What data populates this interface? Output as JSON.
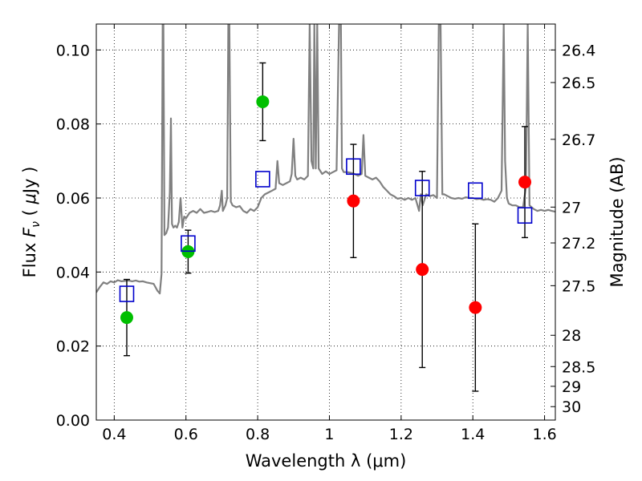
{
  "chart_data": {
    "type": "scatter",
    "xlabel": "Wavelength  λ (μm)",
    "ylabel": "Flux  F_ν  ( μJy )",
    "ylabel_parts": [
      "Flux  ",
      "F",
      "ν",
      "  ( ",
      "μ",
      "Jy )"
    ],
    "ylabel_right": "Magnitude (AB)",
    "xlim": [
      0.35,
      1.63
    ],
    "ylim": [
      0.0,
      0.107
    ],
    "grid": true,
    "x_ticks": [
      0.4,
      0.6,
      0.8,
      1.0,
      1.2,
      1.4,
      1.6
    ],
    "x_tick_labels": [
      "0.4",
      "0.6",
      "0.8",
      "1",
      "1.2",
      "1.4",
      "1.6"
    ],
    "y_ticks": [
      0.0,
      0.02,
      0.04,
      0.06,
      0.08,
      0.1
    ],
    "y_tick_labels": [
      "0.00",
      "0.02",
      "0.04",
      "0.06",
      "0.08",
      "0.10"
    ],
    "mag_ticks": [
      26.4,
      26.5,
      26.7,
      27,
      27.2,
      27.5,
      28,
      28.5,
      29,
      30
    ],
    "mag_tick_labels": [
      "26.4",
      "26.5",
      "26.7",
      "27",
      "27.2",
      "27.5",
      "28",
      "28.5",
      "29",
      "30"
    ],
    "series": [
      {
        "marker": "circle",
        "color": "#00bf00",
        "x": [
          0.435,
          0.606,
          0.814
        ],
        "y": [
          0.0277,
          0.0455,
          0.086
        ],
        "yerr": [
          0.0103,
          0.0058,
          0.0105
        ]
      },
      {
        "marker": "circle",
        "color": "#ff0000",
        "x": [
          1.067,
          1.259,
          1.407,
          1.545
        ],
        "y": [
          0.0592,
          0.0407,
          0.0304,
          0.0643
        ],
        "yerr": [
          0.0153,
          0.0265,
          0.0226,
          0.015
        ]
      },
      {
        "marker": "square",
        "color": "#0000cc",
        "x": [
          0.435,
          0.606,
          0.814,
          1.067,
          1.259,
          1.407,
          1.545
        ],
        "y": [
          0.0341,
          0.0477,
          0.0651,
          0.0685,
          0.0627,
          0.062,
          0.0553
        ]
      }
    ],
    "spectrum": {
      "color": "#808080",
      "points": [
        [
          0.35,
          0.0345
        ],
        [
          0.36,
          0.036
        ],
        [
          0.37,
          0.0372
        ],
        [
          0.38,
          0.0368
        ],
        [
          0.39,
          0.0375
        ],
        [
          0.4,
          0.0372
        ],
        [
          0.41,
          0.0378
        ],
        [
          0.42,
          0.0375
        ],
        [
          0.43,
          0.0376
        ],
        [
          0.44,
          0.0377
        ],
        [
          0.45,
          0.0375
        ],
        [
          0.46,
          0.0377
        ],
        [
          0.47,
          0.0374
        ],
        [
          0.48,
          0.0375
        ],
        [
          0.49,
          0.0372
        ],
        [
          0.5,
          0.037
        ],
        [
          0.51,
          0.0368
        ],
        [
          0.52,
          0.035
        ],
        [
          0.527,
          0.0342
        ],
        [
          0.532,
          0.0395
        ],
        [
          0.535,
          0.107
        ],
        [
          0.537,
          0.107
        ],
        [
          0.54,
          0.05
        ],
        [
          0.545,
          0.0505
        ],
        [
          0.55,
          0.052
        ],
        [
          0.555,
          0.0615
        ],
        [
          0.558,
          0.0815
        ],
        [
          0.561,
          0.053
        ],
        [
          0.565,
          0.052
        ],
        [
          0.57,
          0.0525
        ],
        [
          0.575,
          0.052
        ],
        [
          0.58,
          0.0535
        ],
        [
          0.585,
          0.06
        ],
        [
          0.59,
          0.052
        ],
        [
          0.595,
          0.055
        ],
        [
          0.6,
          0.0545
        ],
        [
          0.61,
          0.056
        ],
        [
          0.62,
          0.0565
        ],
        [
          0.63,
          0.056
        ],
        [
          0.64,
          0.057
        ],
        [
          0.65,
          0.056
        ],
        [
          0.66,
          0.0562
        ],
        [
          0.67,
          0.0565
        ],
        [
          0.68,
          0.0562
        ],
        [
          0.69,
          0.0565
        ],
        [
          0.695,
          0.058
        ],
        [
          0.7,
          0.062
        ],
        [
          0.703,
          0.0565
        ],
        [
          0.71,
          0.058
        ],
        [
          0.715,
          0.06
        ],
        [
          0.718,
          0.107
        ],
        [
          0.721,
          0.107
        ],
        [
          0.725,
          0.059
        ],
        [
          0.73,
          0.058
        ],
        [
          0.74,
          0.0575
        ],
        [
          0.75,
          0.0578
        ],
        [
          0.76,
          0.0565
        ],
        [
          0.77,
          0.056
        ],
        [
          0.78,
          0.057
        ],
        [
          0.79,
          0.0565
        ],
        [
          0.8,
          0.0575
        ],
        [
          0.81,
          0.06
        ],
        [
          0.82,
          0.061
        ],
        [
          0.83,
          0.0615
        ],
        [
          0.84,
          0.062
        ],
        [
          0.85,
          0.0625
        ],
        [
          0.855,
          0.07
        ],
        [
          0.86,
          0.064
        ],
        [
          0.87,
          0.0635
        ],
        [
          0.88,
          0.064
        ],
        [
          0.89,
          0.0645
        ],
        [
          0.895,
          0.0665
        ],
        [
          0.9,
          0.076
        ],
        [
          0.905,
          0.066
        ],
        [
          0.91,
          0.065
        ],
        [
          0.92,
          0.0655
        ],
        [
          0.93,
          0.065
        ],
        [
          0.94,
          0.066
        ],
        [
          0.945,
          0.107
        ],
        [
          0.95,
          0.07
        ],
        [
          0.955,
          0.068
        ],
        [
          0.958,
          0.107
        ],
        [
          0.962,
          0.068
        ],
        [
          0.966,
          0.107
        ],
        [
          0.97,
          0.068
        ],
        [
          0.98,
          0.0665
        ],
        [
          0.99,
          0.0672
        ],
        [
          1.0,
          0.0665
        ],
        [
          1.01,
          0.067
        ],
        [
          1.02,
          0.0675
        ],
        [
          1.027,
          0.107
        ],
        [
          1.032,
          0.107
        ],
        [
          1.035,
          0.068
        ],
        [
          1.04,
          0.067
        ],
        [
          1.05,
          0.067
        ],
        [
          1.06,
          0.0668
        ],
        [
          1.07,
          0.0665
        ],
        [
          1.08,
          0.066
        ],
        [
          1.09,
          0.0665
        ],
        [
          1.095,
          0.077
        ],
        [
          1.1,
          0.066
        ],
        [
          1.11,
          0.0655
        ],
        [
          1.12,
          0.065
        ],
        [
          1.13,
          0.0655
        ],
        [
          1.14,
          0.0645
        ],
        [
          1.15,
          0.063
        ],
        [
          1.16,
          0.062
        ],
        [
          1.17,
          0.061
        ],
        [
          1.18,
          0.0605
        ],
        [
          1.19,
          0.0598
        ],
        [
          1.2,
          0.06
        ],
        [
          1.21,
          0.0595
        ],
        [
          1.22,
          0.06
        ],
        [
          1.23,
          0.0595
        ],
        [
          1.24,
          0.06
        ],
        [
          1.25,
          0.0565
        ],
        [
          1.255,
          0.061
        ],
        [
          1.26,
          0.058
        ],
        [
          1.27,
          0.061
        ],
        [
          1.28,
          0.0605
        ],
        [
          1.29,
          0.0608
        ],
        [
          1.3,
          0.06
        ],
        [
          1.305,
          0.107
        ],
        [
          1.31,
          0.107
        ],
        [
          1.315,
          0.061
        ],
        [
          1.32,
          0.061
        ],
        [
          1.33,
          0.0605
        ],
        [
          1.34,
          0.06
        ],
        [
          1.35,
          0.0598
        ],
        [
          1.36,
          0.06
        ],
        [
          1.37,
          0.0598
        ],
        [
          1.38,
          0.0602
        ],
        [
          1.39,
          0.06
        ],
        [
          1.4,
          0.06
        ],
        [
          1.41,
          0.0597
        ],
        [
          1.42,
          0.0598
        ],
        [
          1.43,
          0.0595
        ],
        [
          1.44,
          0.0597
        ],
        [
          1.45,
          0.0595
        ],
        [
          1.46,
          0.059
        ],
        [
          1.47,
          0.06
        ],
        [
          1.48,
          0.062
        ],
        [
          1.486,
          0.107
        ],
        [
          1.49,
          0.07
        ],
        [
          1.495,
          0.06
        ],
        [
          1.5,
          0.0585
        ],
        [
          1.51,
          0.058
        ],
        [
          1.52,
          0.058
        ],
        [
          1.53,
          0.0575
        ],
        [
          1.54,
          0.0575
        ],
        [
          1.548,
          0.063
        ],
        [
          1.553,
          0.107
        ],
        [
          1.558,
          0.058
        ],
        [
          1.57,
          0.057
        ],
        [
          1.58,
          0.0565
        ],
        [
          1.59,
          0.0568
        ],
        [
          1.6,
          0.0565
        ],
        [
          1.61,
          0.0568
        ],
        [
          1.62,
          0.0565
        ],
        [
          1.63,
          0.0563
        ]
      ]
    }
  }
}
